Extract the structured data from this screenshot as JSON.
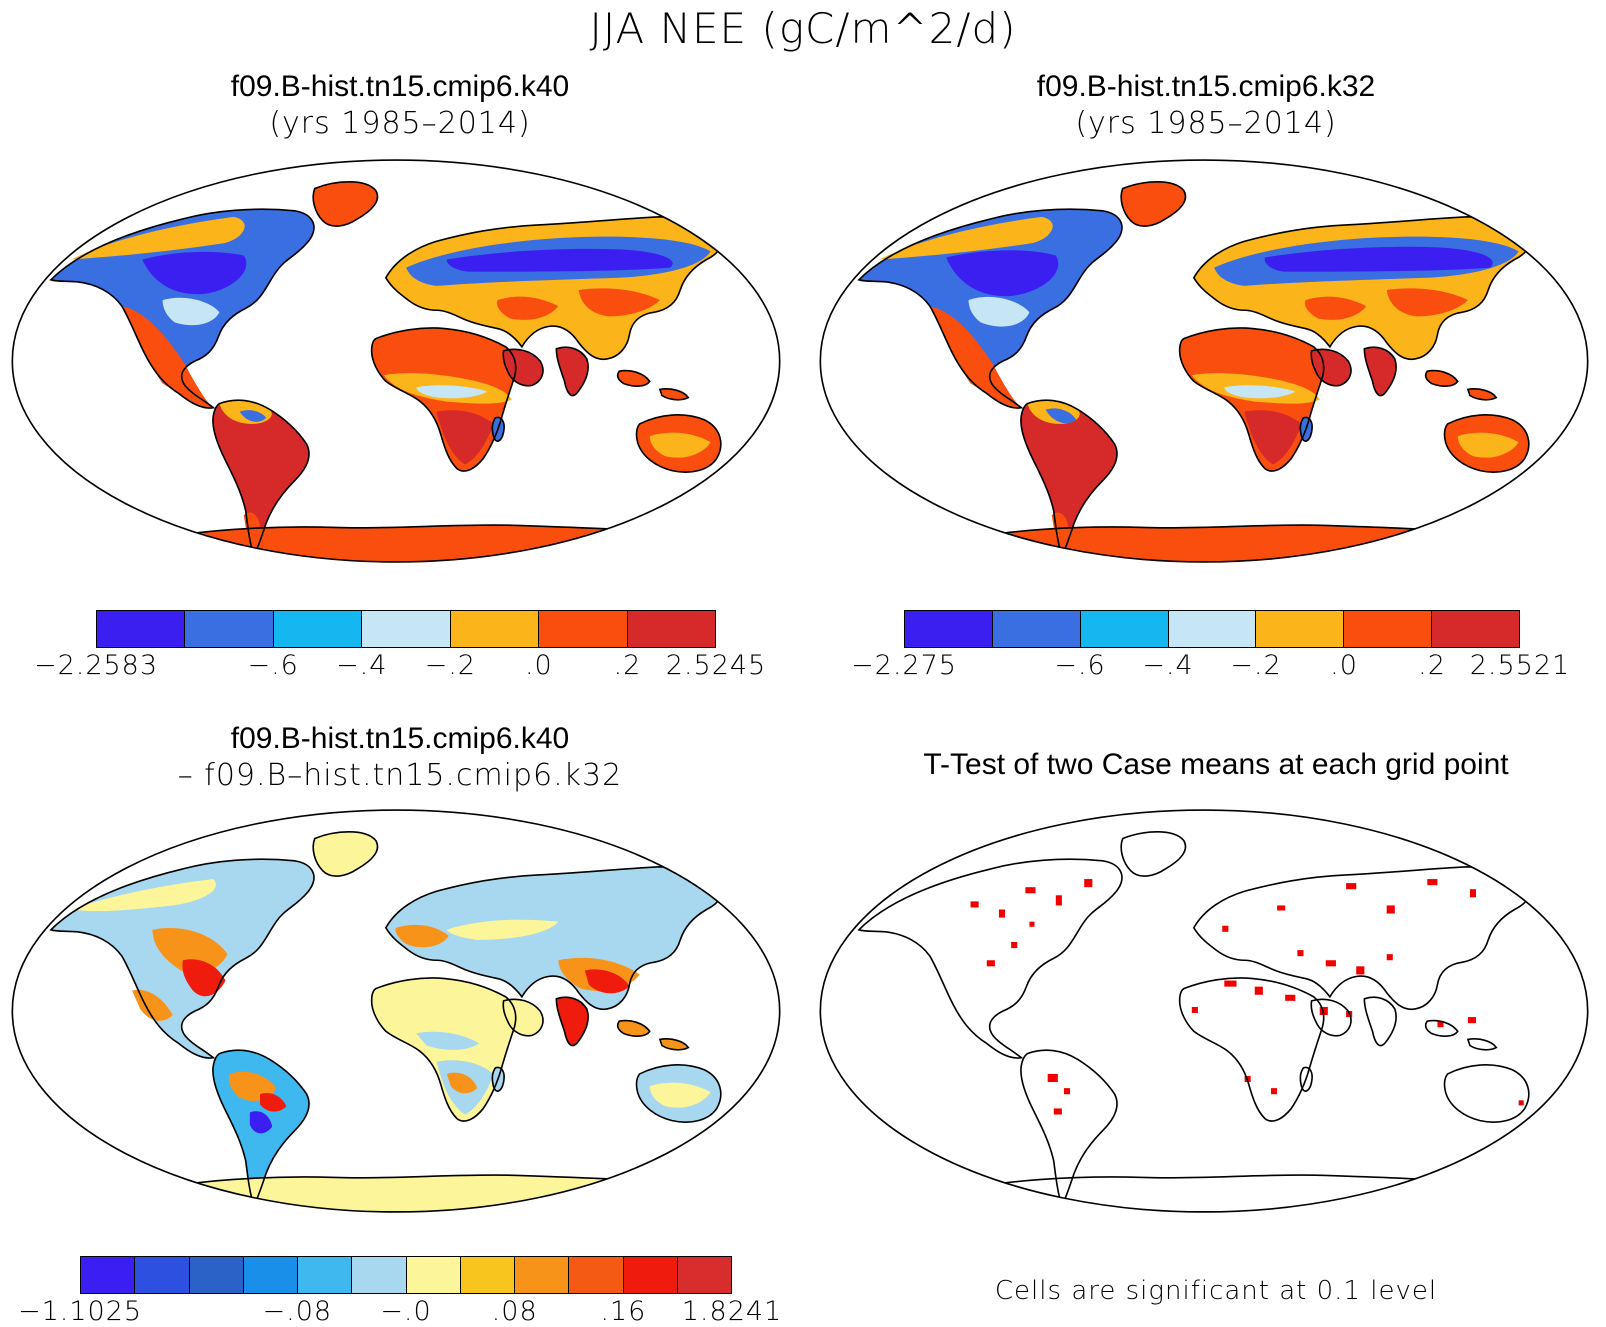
{
  "figure": {
    "title": "JJA NEE (gC/m^2/d)"
  },
  "panels": {
    "top_left": {
      "case": "f09.B-hist.tn15.cmip6.k40",
      "years": "(yrs 1985–2014)"
    },
    "top_right": {
      "case": "f09.B-hist.tn15.cmip6.k32",
      "years": "(yrs 1985–2014)"
    },
    "bottom_left": {
      "case": "f09.B-hist.tn15.cmip6.k40",
      "minus_case": "– f09.B–hist.tn15.cmip6.k32"
    },
    "bottom_right": {
      "title": "T-Test of two Case means at each grid point",
      "note": "Cells are significant at 0.1 level"
    }
  },
  "colorbars": {
    "top_left": {
      "colors": [
        "#3a1ff0",
        "#3a6fe2",
        "#15b7f0",
        "#c6e6f5",
        "#fbb51b",
        "#f94e0e",
        "#d62a2a"
      ],
      "labels": [
        "−2.2583",
        "",
        "−.6",
        "−.4",
        "−.2",
        ".0",
        ".2",
        "2.5245"
      ]
    },
    "top_right": {
      "colors": [
        "#3a1ff0",
        "#3a6fe2",
        "#15b7f0",
        "#c6e6f5",
        "#fbb51b",
        "#f94e0e",
        "#d62a2a"
      ],
      "labels": [
        "−2.275",
        "",
        "−.6",
        "−.4",
        "−.2",
        ".0",
        ".2",
        "2.5521"
      ]
    },
    "bottom_left": {
      "colors": [
        "#3b1ff2",
        "#2d50e0",
        "#2b62c8",
        "#1a8fea",
        "#3fb7ef",
        "#a8d8ef",
        "#fcf59a",
        "#f7c51e",
        "#f8931a",
        "#f55a14",
        "#ef1b0c",
        "#d82d2d"
      ],
      "labels": [
        "−1.1025",
        "",
        "",
        "",
        "−.08",
        "",
        "−.0",
        "",
        ".08",
        "",
        ".16",
        "",
        "1.8241"
      ]
    }
  },
  "map_palettes": {
    "nee": {
      "land_north_boreal": "#3a1ff0",
      "land_temperate": "#3a6fe2",
      "land_tropics": "#d62a2a",
      "land_desert": "#f94e0e",
      "land_transition": "#fbb51b",
      "land_light": "#c6e6f5",
      "land_cyan": "#15b7f0",
      "antarctica": "#f94e0e"
    },
    "diff": {
      "base": "#fcf59a",
      "light_blue": "#a8d8ef",
      "mid_blue": "#3fb7ef",
      "orange": "#f8931a",
      "red": "#ef1b0c",
      "dark_blue": "#3b1ff2"
    },
    "ttest": {
      "significant": "#f20000"
    }
  }
}
